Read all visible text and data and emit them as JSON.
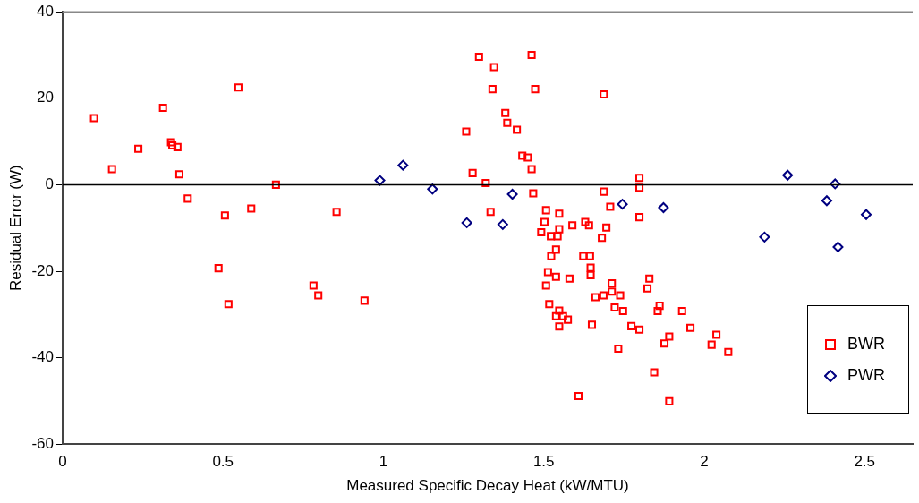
{
  "chart_data": {
    "type": "scatter",
    "xlabel": "Measured Specific Decay Heat (kW/MTU)",
    "ylabel": "Residual Error (W)",
    "xlim": [
      0,
      2.65
    ],
    "xticks": [
      0,
      0.5,
      1,
      1.5,
      2,
      2.5
    ],
    "ylim": [
      -60,
      40
    ],
    "yticks": [
      -60,
      -40,
      -20,
      0,
      20,
      40
    ],
    "grid": false,
    "legend": "bottom right",
    "ref_lines": [
      {
        "axis": "y",
        "value": 0,
        "label": null
      }
    ],
    "series": [
      {
        "name": "BWR",
        "color": "#ff0000",
        "marker": "square",
        "x": [
          0.098,
          0.313,
          0.548,
          0.236,
          0.154,
          0.338,
          0.342,
          0.358,
          0.364,
          0.39,
          0.506,
          0.588,
          0.665,
          0.854,
          0.486,
          0.517,
          0.782,
          0.797,
          0.941,
          1.298,
          1.462,
          1.345,
          1.34,
          1.473,
          1.687,
          1.38,
          1.386,
          1.416,
          1.258,
          1.433,
          1.45,
          1.462,
          1.278,
          1.319,
          1.467,
          1.798,
          1.798,
          1.687,
          1.334,
          1.507,
          1.548,
          1.707,
          1.798,
          1.502,
          1.589,
          1.629,
          1.641,
          1.695,
          1.492,
          1.522,
          1.548,
          1.543,
          1.681,
          1.538,
          1.523,
          1.623,
          1.644,
          1.646,
          1.646,
          1.513,
          1.538,
          1.58,
          1.507,
          1.712,
          1.712,
          1.686,
          1.738,
          1.661,
          1.829,
          1.823,
          1.517,
          1.548,
          1.538,
          1.56,
          1.575,
          1.548,
          1.721,
          1.747,
          1.65,
          1.773,
          1.798,
          1.732,
          1.608,
          1.844,
          1.861,
          1.855,
          1.931,
          1.957,
          1.891,
          1.876,
          2.038,
          2.023,
          2.075,
          1.891
        ],
        "values": [
          15.4,
          17.8,
          22.5,
          8.3,
          3.6,
          9.8,
          9.1,
          8.7,
          2.4,
          -3.2,
          -7.1,
          -5.5,
          0,
          -6.3,
          -19.3,
          -27.6,
          -23.3,
          -25.6,
          -26.8,
          29.6,
          30.0,
          27.2,
          22.1,
          22.1,
          20.9,
          16.6,
          14.3,
          12.7,
          12.3,
          6.7,
          6.3,
          3.6,
          2.7,
          0.4,
          -2.0,
          1.6,
          -0.7,
          -1.6,
          -6.3,
          -5.9,
          -6.7,
          -5.1,
          -7.5,
          -8.6,
          -9.4,
          -8.6,
          -9.4,
          -9.9,
          -11.0,
          -11.9,
          -10.3,
          -11.9,
          -12.3,
          -15.0,
          -16.5,
          -16.5,
          -16.5,
          -19.2,
          -20.9,
          -20.2,
          -21.3,
          -21.7,
          -23.3,
          -22.8,
          -24.7,
          -25.6,
          -25.6,
          -26.0,
          -21.7,
          -24.0,
          -27.6,
          -29.1,
          -30.4,
          -30.4,
          -31.2,
          -32.8,
          -28.4,
          -29.2,
          -32.4,
          -32.7,
          -33.5,
          -37.9,
          -48.9,
          -43.4,
          -28.0,
          -29.2,
          -29.2,
          -33.1,
          -35.1,
          -36.7,
          -34.7,
          -37.0,
          -38.7,
          -50.1
        ]
      },
      {
        "name": "PWR",
        "color": "#000080",
        "marker": "diamond",
        "x": [
          0.989,
          1.061,
          1.153,
          1.26,
          1.372,
          1.402,
          1.745,
          1.873,
          2.26,
          2.408,
          2.382,
          2.505,
          2.188,
          2.417
        ],
        "values": [
          1.0,
          4.5,
          -1.0,
          -8.8,
          -9.2,
          -2.2,
          -4.5,
          -5.3,
          2.2,
          0.2,
          -3.7,
          -6.9,
          -12.1,
          -14.4
        ]
      }
    ]
  }
}
